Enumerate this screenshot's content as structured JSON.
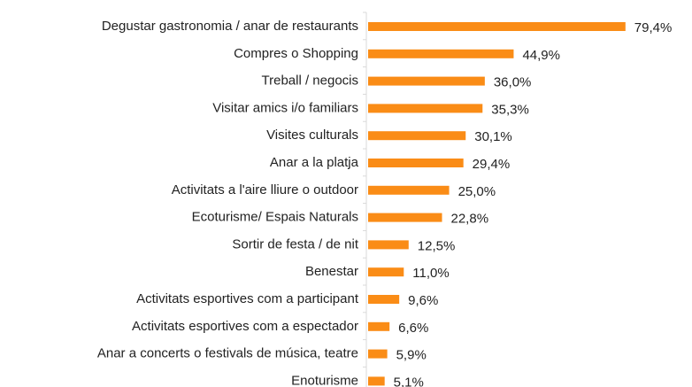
{
  "chart_data": {
    "type": "bar",
    "orientation": "horizontal",
    "categories": [
      "Degustar gastronomia / anar de restaurants",
      "Compres o Shopping",
      "Treball / negocis",
      "Visitar amics i/o familiars",
      "Visites culturals",
      "Anar a la platja",
      "Activitats a l'aire lliure o outdoor",
      "Ecoturisme/ Espais Naturals",
      "Sortir de festa / de nit",
      "Benestar",
      "Activitats esportives com a participant",
      "Activitats esportives com a espectador",
      "Anar a concerts o festivals de música, teatre",
      "Enoturisme"
    ],
    "values": [
      79.4,
      44.9,
      36.0,
      35.3,
      30.1,
      29.4,
      25.0,
      22.8,
      12.5,
      11.0,
      9.6,
      6.6,
      5.9,
      5.1
    ],
    "value_labels": [
      "79,4%",
      "44,9%",
      "36,0%",
      "35,3%",
      "30,1%",
      "29,4%",
      "25,0%",
      "22,8%",
      "12,5%",
      "11,0%",
      "9,6%",
      "6,6%",
      "5,9%",
      "5,1%"
    ],
    "color": "#fa8c16",
    "xlim": [
      0,
      80
    ]
  }
}
